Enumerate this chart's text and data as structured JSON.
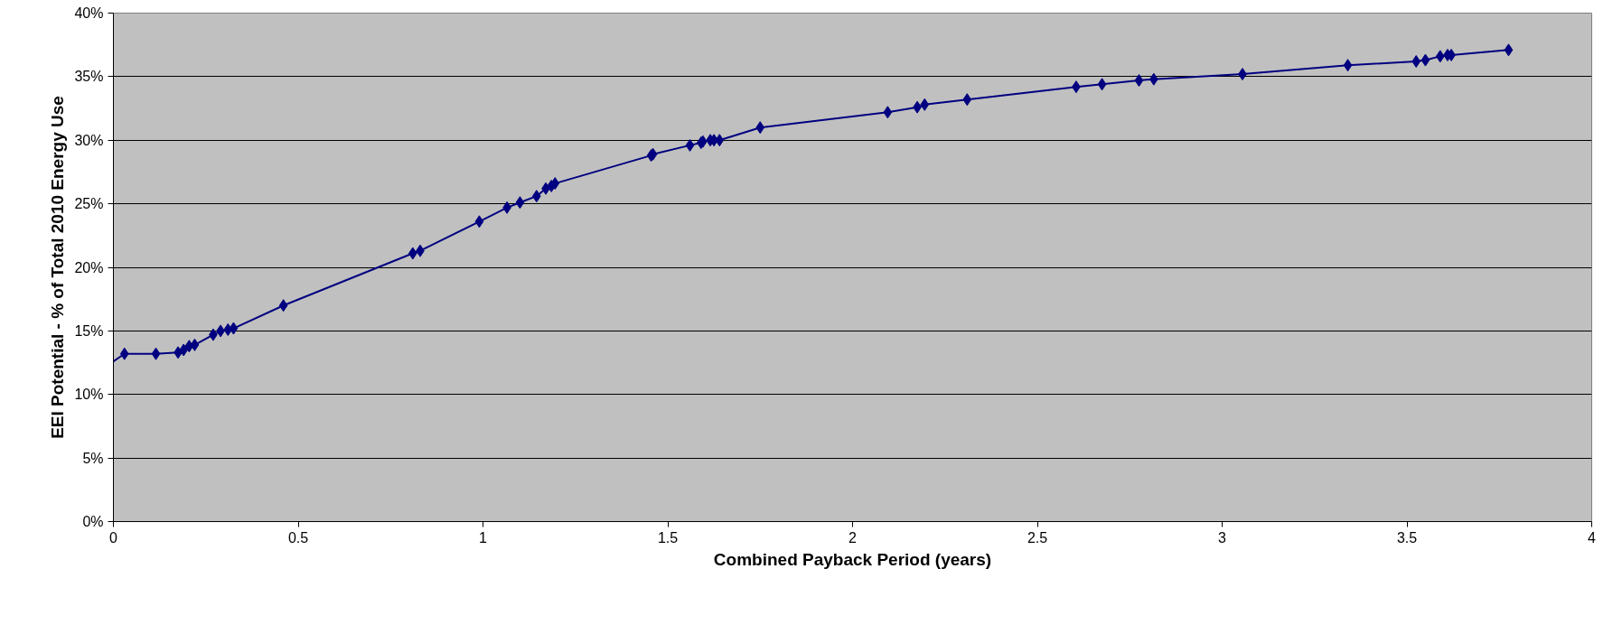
{
  "chart_data": {
    "type": "line",
    "xlabel": "Combined Payback Period (years)",
    "ylabel": "EEI Potential - % of Total 2010 Energy Use",
    "series": [
      {
        "color": "#000080",
        "marker": "none",
        "x": [
          0,
          0.03,
          0.115,
          0.175,
          0.19,
          0.205,
          0.22,
          0.27,
          0.29,
          0.31,
          0.325,
          0.46,
          0.81,
          0.83,
          0.99,
          1.065,
          1.1,
          1.145,
          1.17,
          1.185,
          1.195,
          1.455,
          1.46,
          1.56,
          1.59,
          1.595,
          1.615,
          1.625,
          1.64,
          1.75,
          2.095,
          2.175,
          2.195,
          2.31,
          2.605,
          2.675,
          2.775,
          2.815,
          3.055,
          3.34,
          3.525,
          3.55,
          3.59,
          3.61,
          3.62,
          3.775
        ],
        "values": [
          12.6,
          13.2,
          13.2,
          13.3,
          13.5,
          13.8,
          13.9,
          14.7,
          15.0,
          15.1,
          15.2,
          17.0,
          21.1,
          21.3,
          23.6,
          24.7,
          25.1,
          25.6,
          26.2,
          26.4,
          26.6,
          28.8,
          28.9,
          29.6,
          29.8,
          29.9,
          30.0,
          30.0,
          30.0,
          31.0,
          32.2,
          32.6,
          32.8,
          33.2,
          34.2,
          34.4,
          34.7,
          34.8,
          35.2,
          35.9,
          36.2,
          36.3,
          36.6,
          36.7,
          36.7,
          37.1
        ]
      },
      {
        "type": "scatter",
        "color": "#000080",
        "marker": "diamond",
        "x": [
          0.03,
          0.115,
          0.175,
          0.19,
          0.205,
          0.22,
          0.27,
          0.29,
          0.31,
          0.325,
          0.46,
          0.81,
          0.83,
          0.99,
          1.065,
          1.1,
          1.145,
          1.17,
          1.185,
          1.195,
          1.455,
          1.46,
          1.56,
          1.59,
          1.595,
          1.615,
          1.625,
          1.64,
          1.75,
          2.095,
          2.175,
          2.195,
          2.31,
          2.605,
          2.675,
          2.775,
          2.815,
          3.055,
          3.34,
          3.525,
          3.55,
          3.59,
          3.61,
          3.62,
          3.775
        ],
        "values": [
          13.2,
          13.2,
          13.3,
          13.5,
          13.8,
          13.9,
          14.7,
          15.0,
          15.1,
          15.2,
          17.0,
          21.1,
          21.3,
          23.6,
          24.7,
          25.1,
          25.6,
          26.2,
          26.4,
          26.6,
          28.8,
          28.9,
          29.6,
          29.8,
          29.9,
          30.0,
          30.0,
          30.0,
          31.0,
          32.2,
          32.6,
          32.8,
          33.2,
          34.2,
          34.4,
          34.7,
          34.8,
          35.2,
          35.9,
          36.2,
          36.3,
          36.6,
          36.7,
          36.7,
          37.1
        ]
      }
    ],
    "xlim": [
      0,
      4
    ],
    "xticks": [
      0,
      0.5,
      1,
      1.5,
      2,
      2.5,
      3,
      3.5,
      4
    ],
    "ylim": [
      0,
      40
    ],
    "yticks": [
      {
        "value": 0,
        "label": "0%"
      },
      {
        "value": 5,
        "label": "5%"
      },
      {
        "value": 10,
        "label": "10%"
      },
      {
        "value": 15,
        "label": "15%"
      },
      {
        "value": 20,
        "label": "20%"
      },
      {
        "value": 25,
        "label": "25%"
      },
      {
        "value": 30,
        "label": "30%"
      },
      {
        "value": 35,
        "label": "35%"
      },
      {
        "value": 40,
        "label": "40%"
      }
    ],
    "grid": "y",
    "line_style": "solid"
  }
}
